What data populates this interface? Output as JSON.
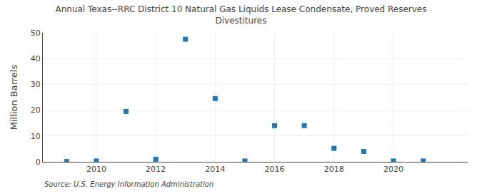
{
  "chart_data": {
    "type": "scatter",
    "title": "Annual Texas--RRC District 10 Natural Gas Liquids Lease Condensate, Proved Reserves\nDivestitures",
    "ylabel": "Million Barrels",
    "annotations": [
      "Source: U.S. Energy Information Administration"
    ],
    "x": [
      2009,
      2010,
      2011,
      2012,
      2013,
      2014,
      2015,
      2016,
      2017,
      2018,
      2019,
      2020,
      2021
    ],
    "values": [
      0.1,
      0.3,
      19.5,
      1.0,
      47.5,
      24.5,
      0.3,
      14.0,
      14.0,
      5.2,
      4.0,
      0.3,
      0.3
    ],
    "marker": "square",
    "xlim": [
      2008.2,
      2022.5
    ],
    "xticks": [
      2010,
      2012,
      2014,
      2016,
      2018,
      2020
    ],
    "ylim": [
      0,
      50
    ],
    "yticks": [
      0,
      10,
      20,
      30,
      40,
      50
    ],
    "grid": true
  }
}
